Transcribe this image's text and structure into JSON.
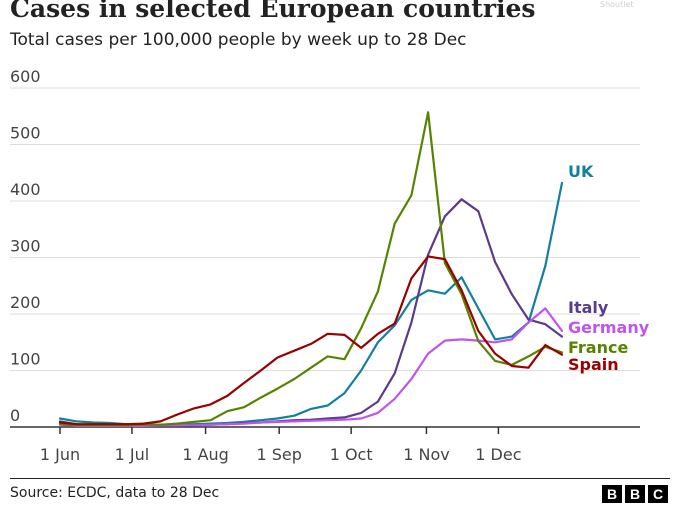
{
  "header": {
    "watermark": "Shoutlet"
  },
  "footer": {
    "source": "Source: ECDC, data to 28 Dec",
    "logo_letters": [
      "B",
      "B",
      "C"
    ]
  },
  "chart_data": {
    "type": "line",
    "title": "Cases in selected European countries",
    "subtitle": "Total cases per 100,000 people by week up to 28 Dec",
    "xlabel": "",
    "ylabel": "",
    "ylim": [
      0,
      600
    ],
    "yticks": [
      0,
      100,
      200,
      300,
      400,
      500,
      600
    ],
    "x_unit": "week index (week 0 = 1 Jun)",
    "xlim": [
      0,
      30
    ],
    "xtick_labels": [
      {
        "week": 0,
        "label": "1 Jun"
      },
      {
        "week": 4.3,
        "label": "1 Jul"
      },
      {
        "week": 8.7,
        "label": "1 Aug"
      },
      {
        "week": 13.1,
        "label": "1 Sep"
      },
      {
        "week": 17.4,
        "label": "1 Oct"
      },
      {
        "week": 21.9,
        "label": "1 Nov"
      },
      {
        "week": 26.2,
        "label": "1 Dec"
      }
    ],
    "grid": true,
    "legend": "direct labels at right end of lines",
    "series": [
      {
        "name": "UK",
        "color": "#1380A1",
        "values": [
          15,
          10,
          8,
          7,
          5,
          4,
          4,
          4,
          5,
          6,
          7,
          9,
          12,
          15,
          20,
          32,
          38,
          60,
          100,
          150,
          180,
          225,
          242,
          236,
          265,
          210,
          155,
          160,
          185,
          285,
          432
        ]
      },
      {
        "name": "Italy",
        "color": "#5A3B8C",
        "values": [
          10,
          5,
          3,
          2,
          2,
          2,
          2,
          2,
          3,
          4,
          5,
          7,
          8,
          10,
          12,
          13,
          15,
          17,
          25,
          45,
          95,
          185,
          305,
          373,
          403,
          382,
          292,
          235,
          190,
          182,
          160
        ]
      },
      {
        "name": "Germany",
        "color": "#BF55EC",
        "values": [
          4,
          2,
          2,
          2,
          2,
          2,
          3,
          3,
          3,
          4,
          5,
          6,
          8,
          9,
          10,
          11,
          12,
          13,
          15,
          25,
          50,
          85,
          130,
          153,
          155,
          153,
          150,
          155,
          185,
          210,
          170
        ]
      },
      {
        "name": "France",
        "color": "#588300",
        "values": [
          5,
          3,
          3,
          3,
          3,
          4,
          4,
          6,
          9,
          12,
          28,
          35,
          52,
          68,
          85,
          105,
          125,
          120,
          175,
          240,
          360,
          410,
          557,
          290,
          235,
          152,
          117,
          110,
          125,
          142,
          132
        ]
      },
      {
        "name": "Spain",
        "color": "#990000",
        "values": [
          8,
          5,
          5,
          5,
          5,
          6,
          10,
          22,
          33,
          40,
          55,
          78,
          100,
          123,
          135,
          147,
          165,
          163,
          140,
          165,
          183,
          263,
          302,
          297,
          242,
          170,
          130,
          108,
          105,
          145,
          128
        ]
      }
    ]
  }
}
